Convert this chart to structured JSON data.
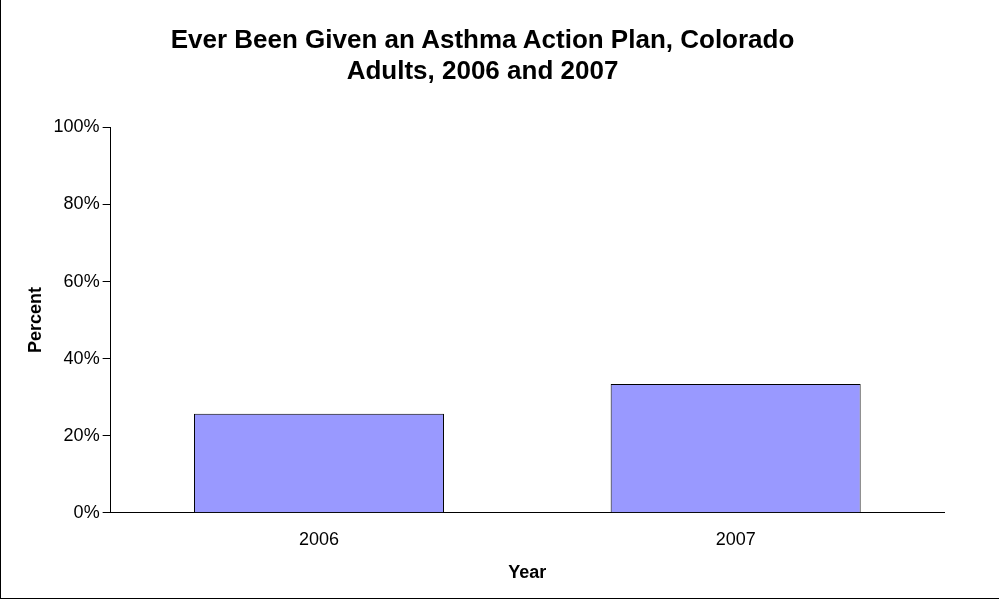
{
  "chart_data": {
    "type": "bar",
    "title": "Ever Been Given an Asthma Action Plan, Colorado Adults, 2006 and 2007",
    "xlabel": "Year",
    "ylabel": "Percent",
    "categories": [
      "2006",
      "2007"
    ],
    "values": [
      25.7,
      33.4
    ],
    "color": "#9999ff",
    "ylim": [
      0,
      100
    ],
    "yticks": [
      {
        "value": 0,
        "label": "0%"
      },
      {
        "value": 20,
        "label": "20%"
      },
      {
        "value": 40,
        "label": "40%"
      },
      {
        "value": 60,
        "label": "60%"
      },
      {
        "value": 80,
        "label": "80%"
      },
      {
        "value": 100,
        "label": "100%"
      }
    ],
    "grid": false,
    "legend": false
  }
}
